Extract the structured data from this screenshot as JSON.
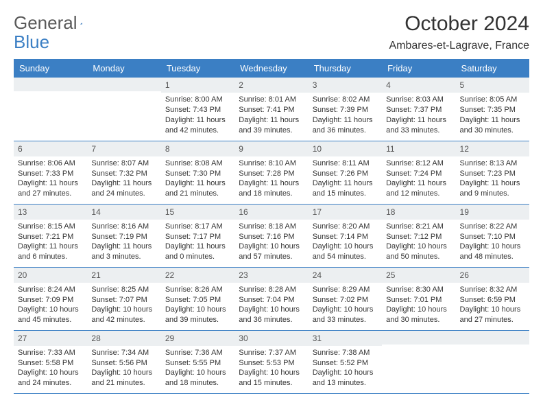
{
  "brand": {
    "word1": "General",
    "word2": "Blue"
  },
  "title": "October 2024",
  "location": "Ambares-et-Lagrave, France",
  "colors": {
    "header_bg": "#3b7fc4",
    "header_text": "#ffffff",
    "daynum_bg": "#eceff1",
    "border": "#3b7fc4",
    "text": "#333333",
    "logo_gray": "#5a5a5a",
    "logo_blue": "#3b7fc4"
  },
  "dayNames": [
    "Sunday",
    "Monday",
    "Tuesday",
    "Wednesday",
    "Thursday",
    "Friday",
    "Saturday"
  ],
  "weeks": [
    [
      {
        "n": "",
        "sunrise": "",
        "sunset": "",
        "daylight": ""
      },
      {
        "n": "",
        "sunrise": "",
        "sunset": "",
        "daylight": ""
      },
      {
        "n": "1",
        "sunrise": "Sunrise: 8:00 AM",
        "sunset": "Sunset: 7:43 PM",
        "daylight": "Daylight: 11 hours and 42 minutes."
      },
      {
        "n": "2",
        "sunrise": "Sunrise: 8:01 AM",
        "sunset": "Sunset: 7:41 PM",
        "daylight": "Daylight: 11 hours and 39 minutes."
      },
      {
        "n": "3",
        "sunrise": "Sunrise: 8:02 AM",
        "sunset": "Sunset: 7:39 PM",
        "daylight": "Daylight: 11 hours and 36 minutes."
      },
      {
        "n": "4",
        "sunrise": "Sunrise: 8:03 AM",
        "sunset": "Sunset: 7:37 PM",
        "daylight": "Daylight: 11 hours and 33 minutes."
      },
      {
        "n": "5",
        "sunrise": "Sunrise: 8:05 AM",
        "sunset": "Sunset: 7:35 PM",
        "daylight": "Daylight: 11 hours and 30 minutes."
      }
    ],
    [
      {
        "n": "6",
        "sunrise": "Sunrise: 8:06 AM",
        "sunset": "Sunset: 7:33 PM",
        "daylight": "Daylight: 11 hours and 27 minutes."
      },
      {
        "n": "7",
        "sunrise": "Sunrise: 8:07 AM",
        "sunset": "Sunset: 7:32 PM",
        "daylight": "Daylight: 11 hours and 24 minutes."
      },
      {
        "n": "8",
        "sunrise": "Sunrise: 8:08 AM",
        "sunset": "Sunset: 7:30 PM",
        "daylight": "Daylight: 11 hours and 21 minutes."
      },
      {
        "n": "9",
        "sunrise": "Sunrise: 8:10 AM",
        "sunset": "Sunset: 7:28 PM",
        "daylight": "Daylight: 11 hours and 18 minutes."
      },
      {
        "n": "10",
        "sunrise": "Sunrise: 8:11 AM",
        "sunset": "Sunset: 7:26 PM",
        "daylight": "Daylight: 11 hours and 15 minutes."
      },
      {
        "n": "11",
        "sunrise": "Sunrise: 8:12 AM",
        "sunset": "Sunset: 7:24 PM",
        "daylight": "Daylight: 11 hours and 12 minutes."
      },
      {
        "n": "12",
        "sunrise": "Sunrise: 8:13 AM",
        "sunset": "Sunset: 7:23 PM",
        "daylight": "Daylight: 11 hours and 9 minutes."
      }
    ],
    [
      {
        "n": "13",
        "sunrise": "Sunrise: 8:15 AM",
        "sunset": "Sunset: 7:21 PM",
        "daylight": "Daylight: 11 hours and 6 minutes."
      },
      {
        "n": "14",
        "sunrise": "Sunrise: 8:16 AM",
        "sunset": "Sunset: 7:19 PM",
        "daylight": "Daylight: 11 hours and 3 minutes."
      },
      {
        "n": "15",
        "sunrise": "Sunrise: 8:17 AM",
        "sunset": "Sunset: 7:17 PM",
        "daylight": "Daylight: 11 hours and 0 minutes."
      },
      {
        "n": "16",
        "sunrise": "Sunrise: 8:18 AM",
        "sunset": "Sunset: 7:16 PM",
        "daylight": "Daylight: 10 hours and 57 minutes."
      },
      {
        "n": "17",
        "sunrise": "Sunrise: 8:20 AM",
        "sunset": "Sunset: 7:14 PM",
        "daylight": "Daylight: 10 hours and 54 minutes."
      },
      {
        "n": "18",
        "sunrise": "Sunrise: 8:21 AM",
        "sunset": "Sunset: 7:12 PM",
        "daylight": "Daylight: 10 hours and 50 minutes."
      },
      {
        "n": "19",
        "sunrise": "Sunrise: 8:22 AM",
        "sunset": "Sunset: 7:10 PM",
        "daylight": "Daylight: 10 hours and 48 minutes."
      }
    ],
    [
      {
        "n": "20",
        "sunrise": "Sunrise: 8:24 AM",
        "sunset": "Sunset: 7:09 PM",
        "daylight": "Daylight: 10 hours and 45 minutes."
      },
      {
        "n": "21",
        "sunrise": "Sunrise: 8:25 AM",
        "sunset": "Sunset: 7:07 PM",
        "daylight": "Daylight: 10 hours and 42 minutes."
      },
      {
        "n": "22",
        "sunrise": "Sunrise: 8:26 AM",
        "sunset": "Sunset: 7:05 PM",
        "daylight": "Daylight: 10 hours and 39 minutes."
      },
      {
        "n": "23",
        "sunrise": "Sunrise: 8:28 AM",
        "sunset": "Sunset: 7:04 PM",
        "daylight": "Daylight: 10 hours and 36 minutes."
      },
      {
        "n": "24",
        "sunrise": "Sunrise: 8:29 AM",
        "sunset": "Sunset: 7:02 PM",
        "daylight": "Daylight: 10 hours and 33 minutes."
      },
      {
        "n": "25",
        "sunrise": "Sunrise: 8:30 AM",
        "sunset": "Sunset: 7:01 PM",
        "daylight": "Daylight: 10 hours and 30 minutes."
      },
      {
        "n": "26",
        "sunrise": "Sunrise: 8:32 AM",
        "sunset": "Sunset: 6:59 PM",
        "daylight": "Daylight: 10 hours and 27 minutes."
      }
    ],
    [
      {
        "n": "27",
        "sunrise": "Sunrise: 7:33 AM",
        "sunset": "Sunset: 5:58 PM",
        "daylight": "Daylight: 10 hours and 24 minutes."
      },
      {
        "n": "28",
        "sunrise": "Sunrise: 7:34 AM",
        "sunset": "Sunset: 5:56 PM",
        "daylight": "Daylight: 10 hours and 21 minutes."
      },
      {
        "n": "29",
        "sunrise": "Sunrise: 7:36 AM",
        "sunset": "Sunset: 5:55 PM",
        "daylight": "Daylight: 10 hours and 18 minutes."
      },
      {
        "n": "30",
        "sunrise": "Sunrise: 7:37 AM",
        "sunset": "Sunset: 5:53 PM",
        "daylight": "Daylight: 10 hours and 15 minutes."
      },
      {
        "n": "31",
        "sunrise": "Sunrise: 7:38 AM",
        "sunset": "Sunset: 5:52 PM",
        "daylight": "Daylight: 10 hours and 13 minutes."
      },
      {
        "n": "",
        "sunrise": "",
        "sunset": "",
        "daylight": ""
      },
      {
        "n": "",
        "sunrise": "",
        "sunset": "",
        "daylight": ""
      }
    ]
  ]
}
